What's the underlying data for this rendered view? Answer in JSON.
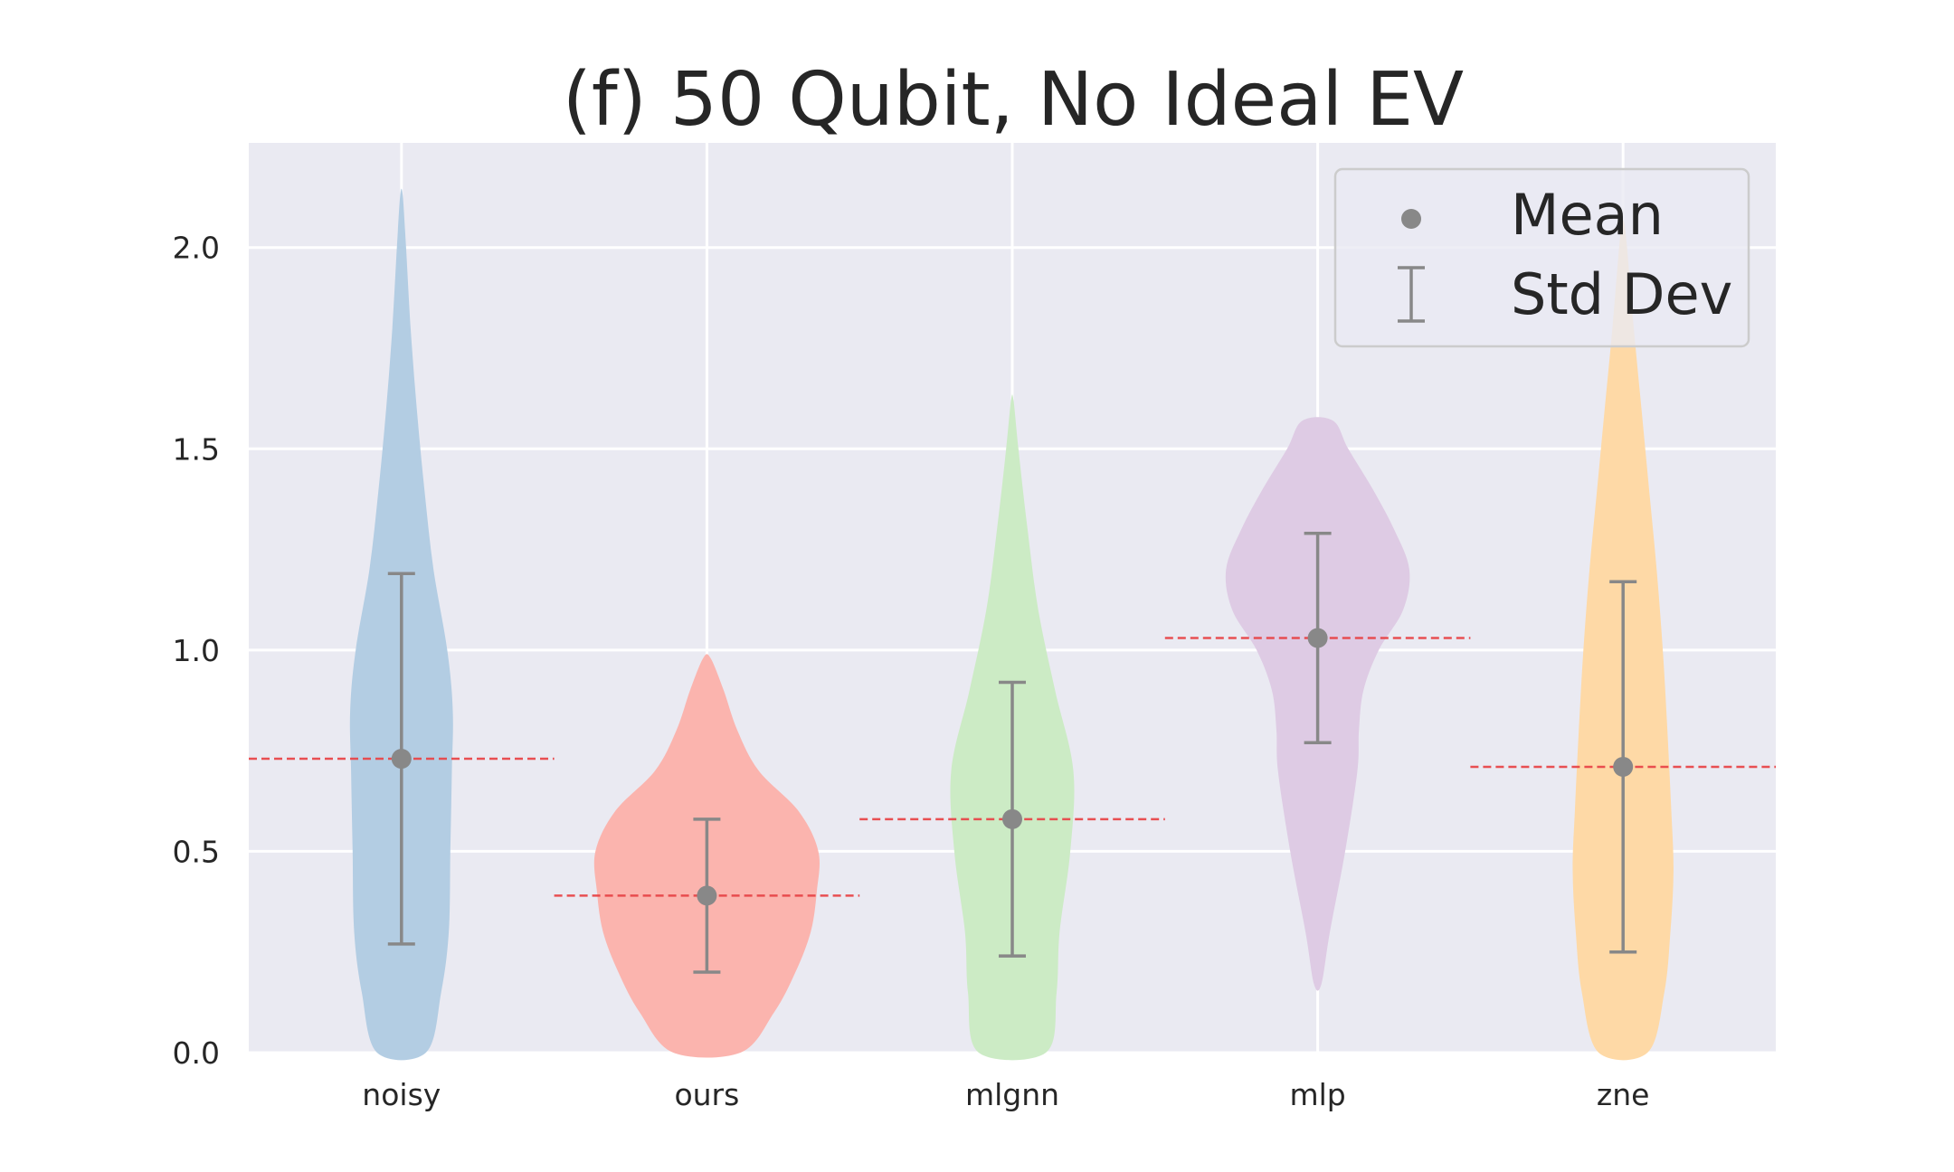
{
  "chart_data": {
    "type": "violin",
    "title": "(f) 50 Qubit, No Ideal EV",
    "xlabel": "",
    "ylabel": "",
    "categories": [
      "noisy",
      "ours",
      "mlgnn",
      "mlp",
      "zne"
    ],
    "ylim": [
      0,
      2.26
    ],
    "yticks": [
      0.0,
      0.5,
      1.0,
      1.5,
      2.0
    ],
    "ytick_labels": [
      "0.0",
      "0.5",
      "1.0",
      "1.5",
      "2.0"
    ],
    "grid": true,
    "legend": {
      "position": "top-right",
      "entries": [
        {
          "marker": "dot",
          "label": "Mean"
        },
        {
          "marker": "errorbar",
          "label": "Std Dev"
        }
      ]
    },
    "marker_color": "#888888",
    "mean_line_color": "#e8474a",
    "background_color": "#eaeaf2",
    "series": [
      {
        "category": "noisy",
        "color": "#b3cde3",
        "mean": 0.73,
        "std_low": 0.27,
        "std_high": 1.19,
        "range": [
          0.0,
          2.13
        ],
        "profile": [
          [
            0.0,
            0.08
          ],
          [
            0.15,
            0.13
          ],
          [
            0.3,
            0.155
          ],
          [
            0.5,
            0.16
          ],
          [
            0.7,
            0.165
          ],
          [
            0.85,
            0.168
          ],
          [
            1.0,
            0.15
          ],
          [
            1.2,
            0.105
          ],
          [
            1.4,
            0.075
          ],
          [
            1.6,
            0.05
          ],
          [
            1.8,
            0.03
          ],
          [
            2.0,
            0.015
          ],
          [
            2.13,
            0.004
          ]
        ]
      },
      {
        "category": "ours",
        "color": "#fbb4ae",
        "mean": 0.39,
        "std_low": 0.2,
        "std_high": 0.58,
        "range": [
          0.0,
          0.98
        ],
        "profile": [
          [
            0.0,
            0.11
          ],
          [
            0.1,
            0.22
          ],
          [
            0.2,
            0.29
          ],
          [
            0.3,
            0.34
          ],
          [
            0.4,
            0.36
          ],
          [
            0.5,
            0.365
          ],
          [
            0.6,
            0.3
          ],
          [
            0.7,
            0.17
          ],
          [
            0.8,
            0.1
          ],
          [
            0.9,
            0.055
          ],
          [
            0.98,
            0.012
          ]
        ]
      },
      {
        "category": "mlgnn",
        "color": "#ccebc5",
        "mean": 0.58,
        "std_low": 0.24,
        "std_high": 0.92,
        "range": [
          0.0,
          1.62
        ],
        "profile": [
          [
            0.0,
            0.11
          ],
          [
            0.15,
            0.145
          ],
          [
            0.3,
            0.155
          ],
          [
            0.5,
            0.19
          ],
          [
            0.7,
            0.2
          ],
          [
            0.9,
            0.14
          ],
          [
            1.1,
            0.085
          ],
          [
            1.3,
            0.05
          ],
          [
            1.5,
            0.02
          ],
          [
            1.62,
            0.004
          ]
        ]
      },
      {
        "category": "mlp",
        "color": "#decbe4",
        "mean": 1.03,
        "std_low": 0.77,
        "std_high": 1.29,
        "range": [
          0.17,
          1.57
        ],
        "profile": [
          [
            0.17,
            0.012
          ],
          [
            0.3,
            0.04
          ],
          [
            0.5,
            0.09
          ],
          [
            0.7,
            0.13
          ],
          [
            0.8,
            0.135
          ],
          [
            0.9,
            0.15
          ],
          [
            1.0,
            0.2
          ],
          [
            1.1,
            0.28
          ],
          [
            1.2,
            0.3
          ],
          [
            1.3,
            0.25
          ],
          [
            1.4,
            0.18
          ],
          [
            1.5,
            0.1
          ],
          [
            1.57,
            0.05
          ]
        ]
      },
      {
        "category": "zne",
        "color": "#fed9a6",
        "mean": 0.71,
        "std_low": 0.25,
        "std_high": 1.17,
        "range": [
          0.0,
          2.06
        ],
        "profile": [
          [
            0.0,
            0.08
          ],
          [
            0.15,
            0.135
          ],
          [
            0.3,
            0.155
          ],
          [
            0.45,
            0.165
          ],
          [
            0.6,
            0.158
          ],
          [
            0.8,
            0.145
          ],
          [
            1.0,
            0.13
          ],
          [
            1.2,
            0.11
          ],
          [
            1.4,
            0.085
          ],
          [
            1.6,
            0.06
          ],
          [
            1.8,
            0.035
          ],
          [
            2.0,
            0.013
          ],
          [
            2.06,
            0.004
          ]
        ]
      }
    ]
  }
}
